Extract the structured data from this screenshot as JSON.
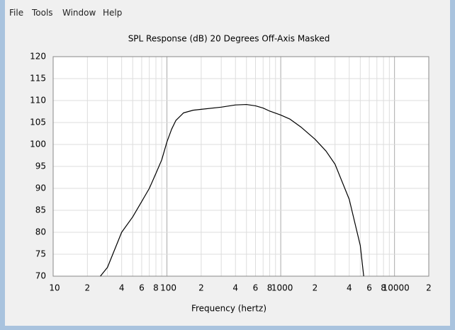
{
  "menu": [
    "File",
    "Tools",
    "Window",
    "Help"
  ],
  "chart_data": {
    "type": "line",
    "title": "SPL Response (dB)   20 Degrees Off-Axis   Masked",
    "x_label": "Frequency (hertz)",
    "x_log": true,
    "grid": true,
    "xlim": [
      10,
      20000
    ],
    "ylim": [
      70,
      120
    ],
    "yticks": [
      70,
      75,
      80,
      85,
      90,
      95,
      100,
      105,
      110,
      115,
      120
    ],
    "xticks": [
      10,
      {
        "value": 20,
        "label": "2"
      },
      {
        "value": 40,
        "label": "4"
      },
      {
        "value": 60,
        "label": "6"
      },
      {
        "value": 80,
        "label": "8"
      },
      100,
      {
        "value": 200,
        "label": "2"
      },
      {
        "value": 400,
        "label": "4"
      },
      {
        "value": 600,
        "label": "6"
      },
      {
        "value": 800,
        "label": "8"
      },
      1000,
      {
        "value": 2000,
        "label": "2"
      },
      {
        "value": 4000,
        "label": "4"
      },
      {
        "value": 6000,
        "label": "6"
      },
      {
        "value": 8000,
        "label": "8"
      },
      10000,
      {
        "value": 20000,
        "label": "2"
      }
    ],
    "x_minor_grid": [
      30,
      50,
      70,
      90,
      300,
      500,
      700,
      900,
      3000,
      5000,
      7000,
      9000
    ],
    "series": [
      {
        "name": "SPL",
        "color": "#000000",
        "x": [
          26,
          30,
          40,
          50,
          60,
          70,
          80,
          90,
          100,
          110,
          120,
          140,
          170,
          200,
          300,
          400,
          500,
          600,
          700,
          800,
          1000,
          1200,
          1500,
          2000,
          2500,
          3000,
          4000,
          5000,
          5360
        ],
        "values": [
          70,
          72,
          80,
          83.5,
          87,
          90,
          93.4,
          96.5,
          100.6,
          103.5,
          105.5,
          107.2,
          107.8,
          108,
          108.5,
          109,
          109.1,
          108.8,
          108.3,
          107.6,
          106.7,
          105.8,
          104,
          101.2,
          98.5,
          95.5,
          87.5,
          77,
          70
        ]
      }
    ]
  }
}
